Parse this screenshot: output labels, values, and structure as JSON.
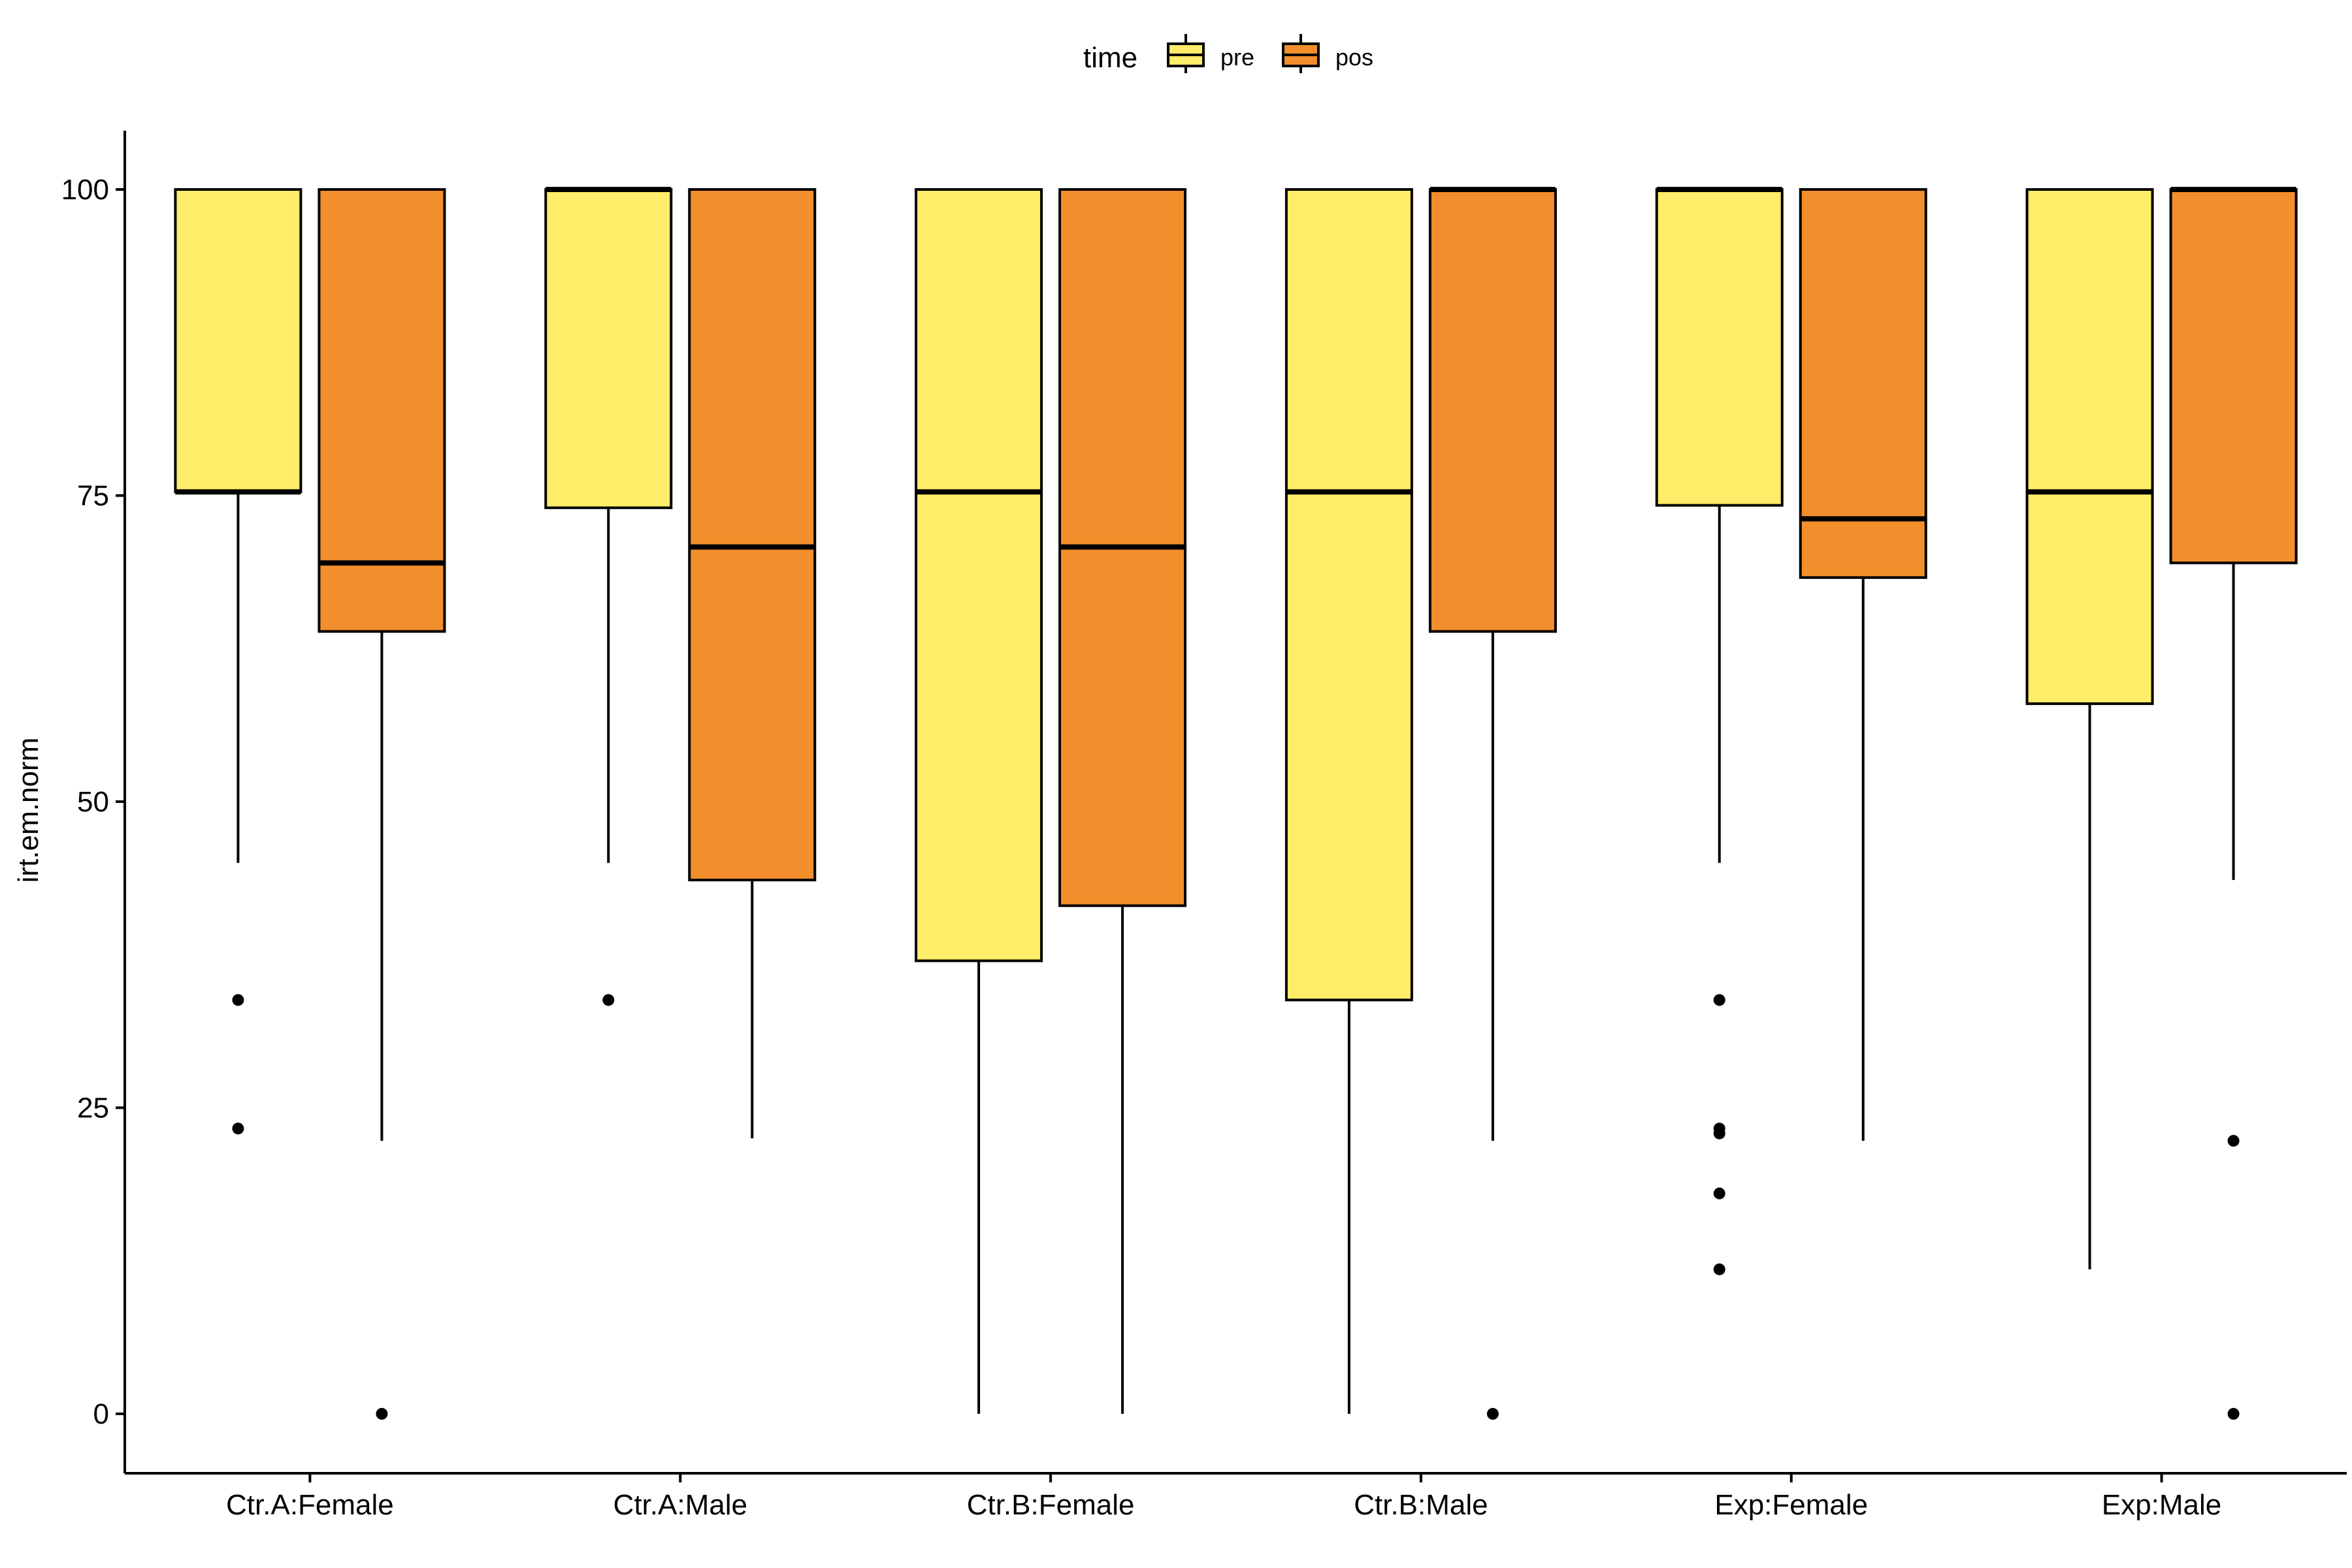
{
  "chart_data": {
    "type": "boxplot",
    "title": "",
    "xlabel": "",
    "ylabel": "irt.em.norm",
    "ylim": [
      -5,
      105
    ],
    "yticks": [
      0,
      25,
      50,
      75,
      100
    ],
    "grid": false,
    "legend": {
      "title": "time",
      "position": "top",
      "entries": [
        {
          "label": "pre",
          "color": "#FFEC68"
        },
        {
          "label": "pos",
          "color": "#F28E2B"
        }
      ]
    },
    "categories": [
      "Ctr.A:Female",
      "Ctr.A:Male",
      "Ctr.B:Female",
      "Ctr.B:Male",
      "Exp:Female",
      "Exp:Male"
    ],
    "series": [
      {
        "name": "pre",
        "color": "#FFEC68",
        "boxes": [
          {
            "lower_whisker": 45,
            "q1": 75.3,
            "median": 75.3,
            "q3": 100,
            "upper_whisker": 100,
            "outliers": [
              33.8,
              23.3
            ]
          },
          {
            "lower_whisker": 45,
            "q1": 74,
            "median": 100,
            "q3": 100,
            "upper_whisker": 100,
            "outliers": [
              33.8
            ]
          },
          {
            "lower_whisker": 0,
            "q1": 37,
            "median": 75.3,
            "q3": 100,
            "upper_whisker": 100,
            "outliers": []
          },
          {
            "lower_whisker": 0,
            "q1": 33.8,
            "median": 75.3,
            "q3": 100,
            "upper_whisker": 100,
            "outliers": []
          },
          {
            "lower_whisker": 45,
            "q1": 74.2,
            "median": 100,
            "q3": 100,
            "upper_whisker": 100,
            "outliers": [
              33.8,
              23.3,
              22.9,
              18,
              11.8
            ]
          },
          {
            "lower_whisker": 11.8,
            "q1": 58,
            "median": 75.3,
            "q3": 100,
            "upper_whisker": 100,
            "outliers": []
          }
        ]
      },
      {
        "name": "pos",
        "color": "#F28E2B",
        "boxes": [
          {
            "lower_whisker": 22.3,
            "q1": 63.9,
            "median": 69.5,
            "q3": 100,
            "upper_whisker": 100,
            "outliers": [
              0
            ]
          },
          {
            "lower_whisker": 22.5,
            "q1": 43.6,
            "median": 70.8,
            "q3": 100,
            "upper_whisker": 100,
            "outliers": []
          },
          {
            "lower_whisker": 0,
            "q1": 41.5,
            "median": 70.8,
            "q3": 100,
            "upper_whisker": 100,
            "outliers": []
          },
          {
            "lower_whisker": 22.3,
            "q1": 63.9,
            "median": 100,
            "q3": 100,
            "upper_whisker": 100,
            "outliers": [
              0
            ]
          },
          {
            "lower_whisker": 22.3,
            "q1": 68.3,
            "median": 73.1,
            "q3": 100,
            "upper_whisker": 100,
            "outliers": []
          },
          {
            "lower_whisker": 43.6,
            "q1": 69.5,
            "median": 100,
            "q3": 100,
            "upper_whisker": 100,
            "outliers": [
              22.3,
              0
            ]
          }
        ]
      }
    ]
  }
}
